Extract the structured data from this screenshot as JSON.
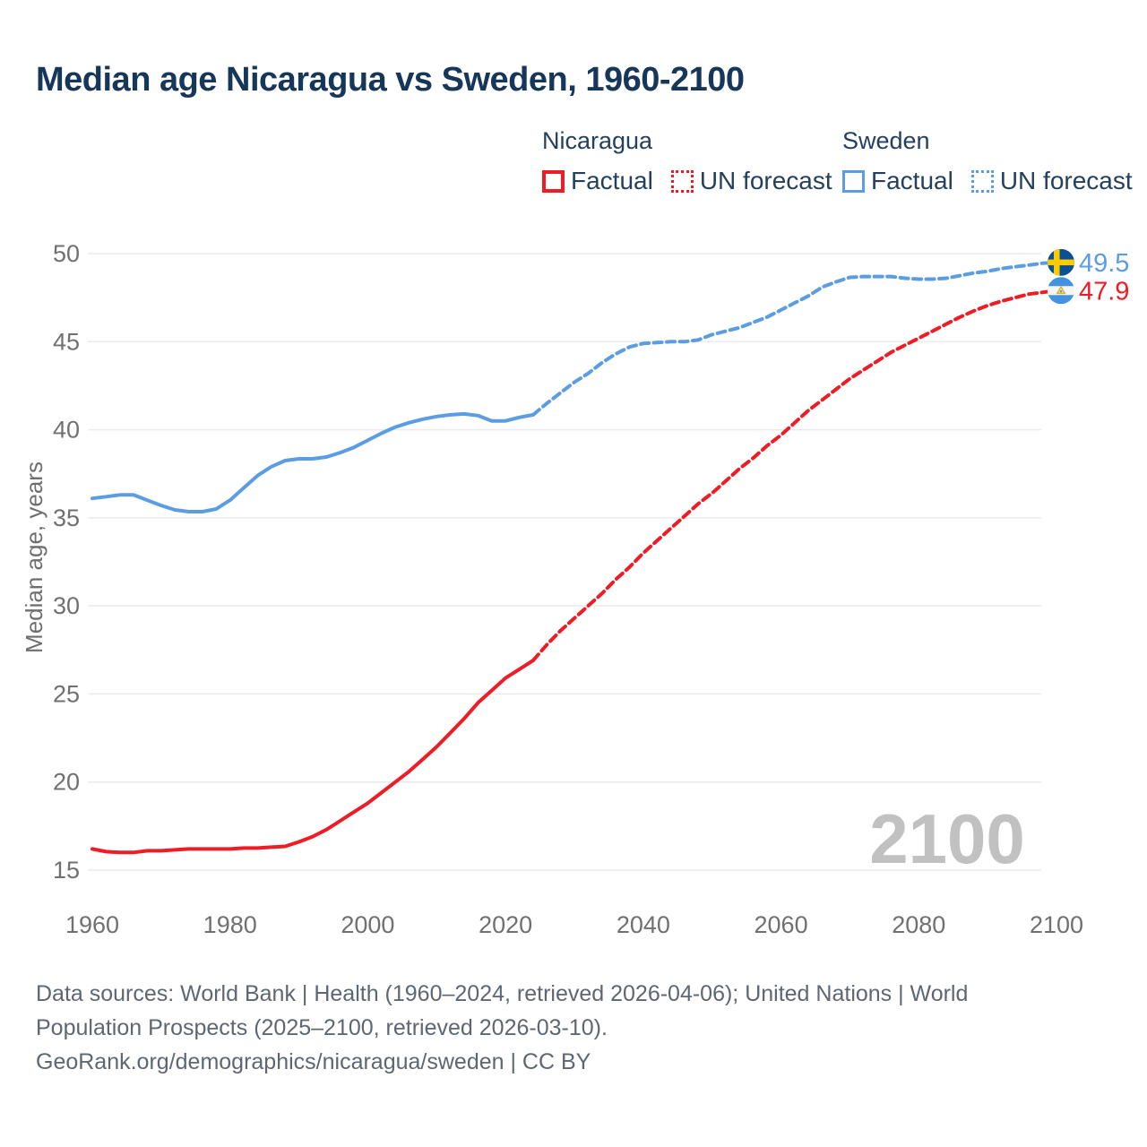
{
  "title": "Median age Nicaragua vs Sweden, 1960-2100",
  "legend": {
    "groups": [
      {
        "name": "Nicaragua",
        "color": "#ee1c25",
        "items": [
          {
            "label": "Factual",
            "style": "solid"
          },
          {
            "label": "UN forecast",
            "style": "dotted"
          }
        ]
      },
      {
        "name": "Sweden",
        "color": "#5b9de2",
        "items": [
          {
            "label": "Factual",
            "style": "solid"
          },
          {
            "label": "UN forecast",
            "style": "dotted"
          }
        ]
      }
    ]
  },
  "chart_data": {
    "type": "line",
    "title": "Median age Nicaragua vs Sweden, 1960-2100",
    "xlabel": "",
    "ylabel": "Median age, years",
    "watermark": "2100",
    "xlim": [
      1959.3,
      2102.8
    ],
    "ylim": [
      13.4,
      51.2
    ],
    "xticks": [
      1960,
      1980,
      2000,
      2020,
      2040,
      2060,
      2080,
      2100
    ],
    "yticks": [
      15,
      20,
      25,
      30,
      35,
      40,
      45,
      50
    ],
    "grid": "horizontal",
    "legend_position": "top-right",
    "series": [
      {
        "name": "Sweden — Factual",
        "color": "#5b9de2",
        "style": "solid",
        "x": [
          1960,
          1962,
          1964,
          1966,
          1968,
          1970,
          1972,
          1974,
          1976,
          1978,
          1980,
          1982,
          1984,
          1986,
          1988,
          1990,
          1992,
          1994,
          1996,
          1998,
          2000,
          2002,
          2004,
          2006,
          2008,
          2010,
          2012,
          2014,
          2016,
          2018,
          2020,
          2022,
          2024
        ],
        "y": [
          36.1,
          36.2,
          36.3,
          36.3,
          36.0,
          35.7,
          35.45,
          35.35,
          35.35,
          35.5,
          36.0,
          36.7,
          37.4,
          37.9,
          38.25,
          38.35,
          38.35,
          38.45,
          38.7,
          39.0,
          39.4,
          39.8,
          40.15,
          40.4,
          40.6,
          40.75,
          40.85,
          40.9,
          40.8,
          40.5,
          40.5,
          40.7,
          40.85
        ]
      },
      {
        "name": "Sweden — UN forecast",
        "color": "#5b9de2",
        "style": "dashed",
        "x": [
          2024,
          2026,
          2028,
          2030,
          2032,
          2034,
          2036,
          2038,
          2040,
          2042,
          2044,
          2046,
          2048,
          2050,
          2052,
          2054,
          2056,
          2058,
          2060,
          2062,
          2064,
          2066,
          2068,
          2070,
          2072,
          2074,
          2076,
          2078,
          2080,
          2082,
          2084,
          2086,
          2088,
          2090,
          2092,
          2094,
          2096,
          2098,
          2100
        ],
        "y": [
          40.85,
          41.5,
          42.1,
          42.7,
          43.2,
          43.8,
          44.3,
          44.7,
          44.9,
          44.95,
          45.0,
          45.0,
          45.1,
          45.4,
          45.6,
          45.8,
          46.1,
          46.4,
          46.8,
          47.2,
          47.6,
          48.1,
          48.4,
          48.65,
          48.7,
          48.7,
          48.7,
          48.6,
          48.55,
          48.55,
          48.6,
          48.75,
          48.9,
          49.0,
          49.15,
          49.25,
          49.35,
          49.45,
          49.5
        ]
      },
      {
        "name": "Nicaragua — Factual",
        "color": "#ee1c25",
        "style": "solid",
        "x": [
          1960,
          1962,
          1964,
          1966,
          1968,
          1970,
          1972,
          1974,
          1976,
          1978,
          1980,
          1982,
          1984,
          1986,
          1988,
          1990,
          1992,
          1994,
          1996,
          1998,
          2000,
          2002,
          2004,
          2006,
          2008,
          2010,
          2012,
          2014,
          2016,
          2018,
          2020,
          2022,
          2024
        ],
        "y": [
          16.2,
          16.05,
          16.0,
          16.0,
          16.1,
          16.1,
          16.15,
          16.2,
          16.2,
          16.2,
          16.2,
          16.25,
          16.25,
          16.3,
          16.35,
          16.6,
          16.9,
          17.3,
          17.8,
          18.3,
          18.8,
          19.4,
          20.0,
          20.6,
          21.3,
          22.0,
          22.8,
          23.6,
          24.5,
          25.2,
          25.9,
          26.4,
          26.9
        ]
      },
      {
        "name": "Nicaragua — UN forecast",
        "color": "#ee1c25",
        "style": "dashed",
        "x": [
          2024,
          2026,
          2028,
          2030,
          2032,
          2034,
          2036,
          2038,
          2040,
          2042,
          2044,
          2046,
          2048,
          2050,
          2052,
          2054,
          2056,
          2058,
          2060,
          2062,
          2064,
          2066,
          2068,
          2070,
          2072,
          2074,
          2076,
          2078,
          2080,
          2082,
          2084,
          2086,
          2088,
          2090,
          2092,
          2094,
          2096,
          2098,
          2100
        ],
        "y": [
          26.9,
          27.8,
          28.6,
          29.3,
          30.0,
          30.7,
          31.5,
          32.2,
          33.0,
          33.7,
          34.4,
          35.1,
          35.8,
          36.4,
          37.1,
          37.8,
          38.4,
          39.1,
          39.7,
          40.4,
          41.1,
          41.7,
          42.3,
          42.9,
          43.4,
          43.9,
          44.4,
          44.8,
          45.2,
          45.6,
          46.0,
          46.4,
          46.75,
          47.05,
          47.3,
          47.5,
          47.7,
          47.8,
          47.9
        ]
      }
    ],
    "end_labels": [
      {
        "series": "Sweden",
        "value": "49.5",
        "color": "#5b9de2",
        "flag": "sweden"
      },
      {
        "series": "Nicaragua",
        "value": "47.9",
        "color": "#ee1c25",
        "flag": "nicaragua"
      }
    ]
  },
  "footer": {
    "lines": [
      "Data sources: World Bank | Health (1960–2024, retrieved 2026-04-06); United Nations | World",
      "Population Prospects (2025–2100, retrieved 2026-03-10).",
      "GeoRank.org/demographics/nicaragua/sweden | CC BY"
    ]
  }
}
